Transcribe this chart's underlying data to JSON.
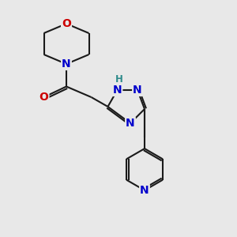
{
  "bg_color": "#e8e8e8",
  "bond_color": "#1a1a1a",
  "N_color": "#0000cc",
  "O_color": "#cc0000",
  "H_color": "#2e8b8b",
  "line_width": 1.5,
  "font_size_atom": 10,
  "font_size_H": 8.5,
  "xlim": [
    0,
    10
  ],
  "ylim": [
    0,
    10
  ]
}
